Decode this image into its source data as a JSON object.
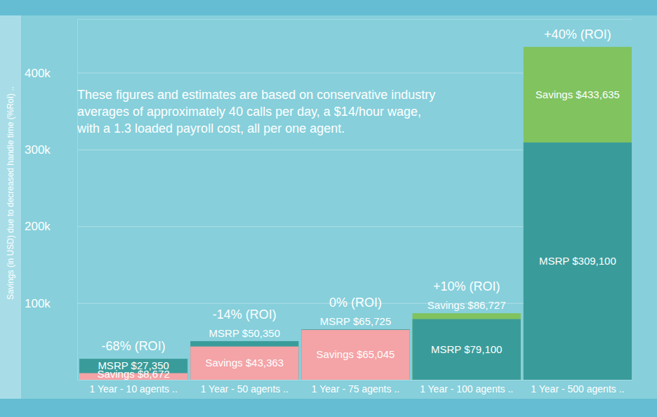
{
  "chart_data": {
    "type": "bar",
    "y_label": "Savings (in USD) due to decreased handle time (%RoI) ..",
    "annotations": {
      "note": [
        "These figures and estimates are based on conservative industry",
        "averages of approximately 40 calls per day, a $14/hour wage,",
        "with a 1.3 loaded payroll cost, all per one agent."
      ],
      "roi": [
        "-68% (ROI)",
        "-14% (ROI)",
        "0% (ROI)",
        "+10% (ROI)",
        "+40% (ROI)"
      ]
    },
    "categories": [
      "1 Year - 10 agents ..",
      "1 Year - 50 agents ..",
      "1 Year - 75 agents ..",
      "1 Year - 100 agents ..",
      "1 Year - 500 agents .."
    ],
    "series": [
      {
        "name": "MSRP",
        "color": "#3a9c9a",
        "values": [
          27350,
          50350,
          65725,
          79100,
          309100
        ],
        "value_labels": [
          "MSRP $27,350",
          "MSRP $50,350",
          "MSRP $65,725",
          "MSRP $79,100",
          "MSRP $309,100"
        ]
      },
      {
        "name": "Savings",
        "colors": [
          "#f4a3a6",
          "#f4a3a6",
          "#f4a3a6",
          "#80c35f",
          "#80c35f"
        ],
        "values": [
          8672,
          43363,
          65045,
          86727,
          433635
        ],
        "value_labels": [
          "Savings $8,672",
          "Savings $43,363",
          "Savings $65,045",
          "Savings $86,727",
          "Savings $433,635"
        ]
      }
    ],
    "ylim": [
      0,
      470000
    ],
    "yticks": [
      {
        "value": 100000,
        "label": "100k"
      },
      {
        "value": 200000,
        "label": "200k"
      },
      {
        "value": 300000,
        "label": "300k"
      },
      {
        "value": 400000,
        "label": "400k"
      }
    ],
    "grid": true,
    "stacked": false,
    "data_labels": true
  }
}
